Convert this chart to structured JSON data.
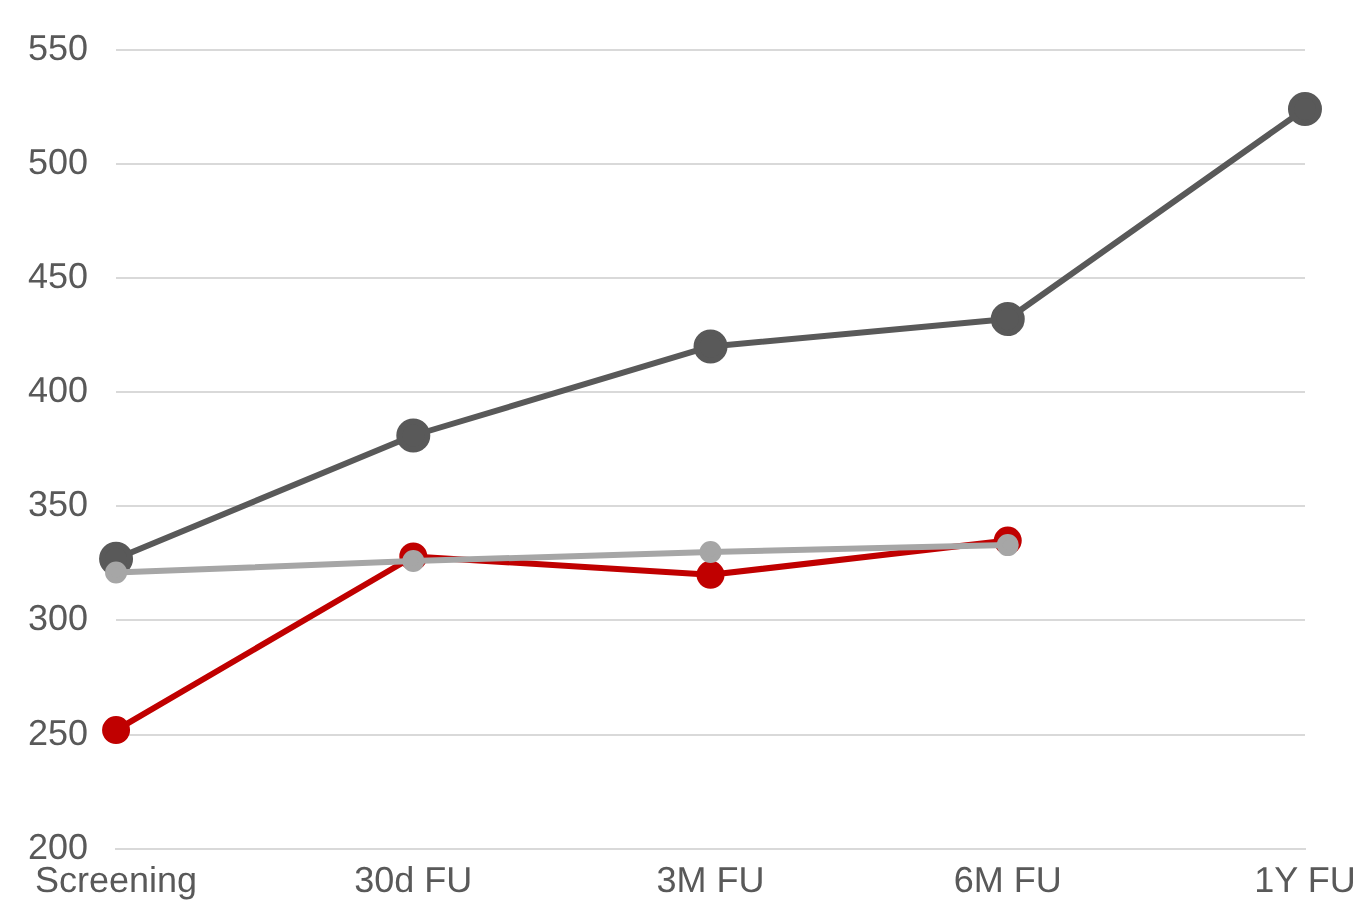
{
  "chart_data": {
    "type": "line",
    "categories": [
      "Screening",
      "30d FU",
      "3M FU",
      "6M FU",
      "1Y FU"
    ],
    "series": [
      {
        "color": "#595959",
        "values": [
          327,
          381,
          420,
          432,
          524
        ]
      },
      {
        "color": "#c00000",
        "values": [
          252,
          328,
          320,
          335,
          null
        ]
      },
      {
        "color": "#a6a6a6",
        "values": [
          321,
          326,
          330,
          333,
          null
        ]
      }
    ],
    "ylim": [
      200,
      550
    ],
    "yticks": [
      200,
      250,
      300,
      350,
      400,
      450,
      500,
      550
    ],
    "grid": "y",
    "legend": false,
    "marker": "circle",
    "line_style": "solid"
  }
}
